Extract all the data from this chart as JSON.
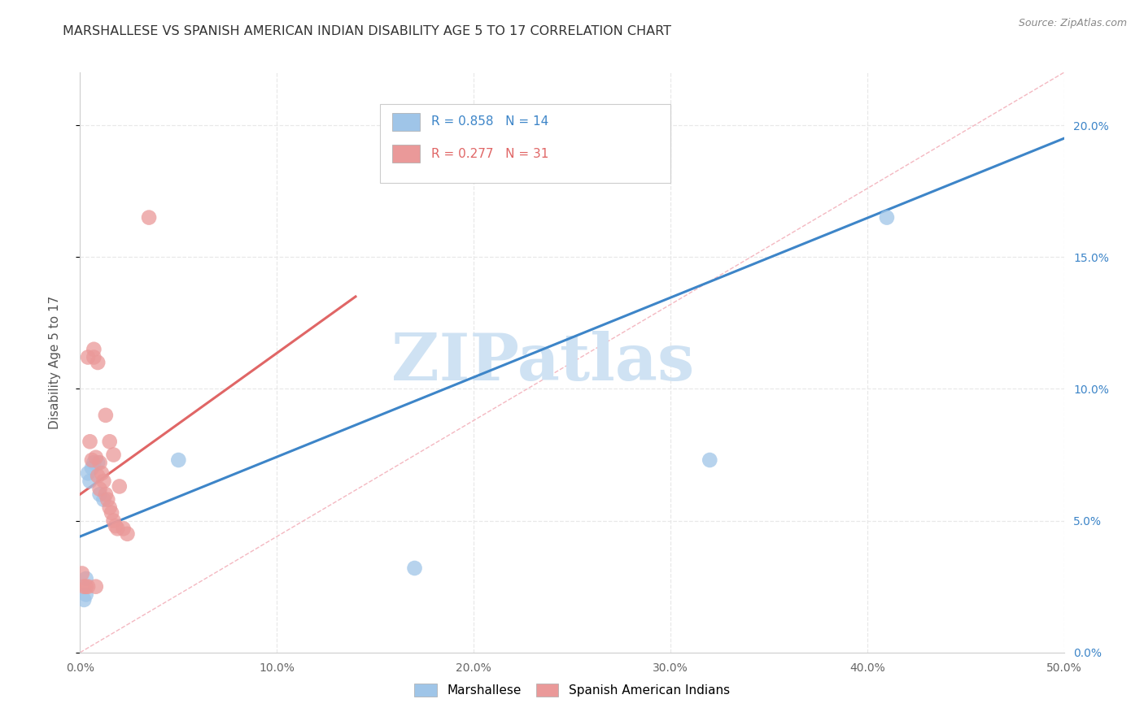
{
  "title": "MARSHALLESE VS SPANISH AMERICAN INDIAN DISABILITY AGE 5 TO 17 CORRELATION CHART",
  "source": "Source: ZipAtlas.com",
  "ylabel": "Disability Age 5 to 17",
  "xlim": [
    0.0,
    0.5
  ],
  "ylim": [
    0.0,
    0.22
  ],
  "legend_R_blue": "R = 0.858",
  "legend_N_blue": "N = 14",
  "legend_R_pink": "R = 0.277",
  "legend_N_pink": "N = 31",
  "label_blue": "Marshallese",
  "label_pink": "Spanish American Indians",
  "blue_scatter_color": "#9fc5e8",
  "pink_scatter_color": "#ea9999",
  "blue_line_color": "#3d85c8",
  "pink_line_color": "#e06666",
  "diag_line_color": "#f4b8c1",
  "watermark_text": "ZIPatlas",
  "watermark_color": "#cfe2f3",
  "right_tick_color": "#3d85c8",
  "blue_line_x0": 0.0,
  "blue_line_x1": 0.5,
  "blue_line_y0": 0.044,
  "blue_line_y1": 0.195,
  "pink_line_x0": 0.0,
  "pink_line_x1": 0.14,
  "pink_line_y0": 0.06,
  "pink_line_y1": 0.135,
  "diag_line_x0": 0.0,
  "diag_line_x1": 0.5,
  "diag_line_y0": 0.0,
  "diag_line_y1": 0.22,
  "blue_x": [
    0.002,
    0.003,
    0.004,
    0.005,
    0.006,
    0.007,
    0.009,
    0.01,
    0.012,
    0.05,
    0.17,
    0.32,
    0.41,
    0.003
  ],
  "blue_y": [
    0.02,
    0.022,
    0.068,
    0.065,
    0.07,
    0.072,
    0.072,
    0.06,
    0.058,
    0.073,
    0.032,
    0.073,
    0.165,
    0.028
  ],
  "pink_x": [
    0.001,
    0.002,
    0.003,
    0.004,
    0.005,
    0.006,
    0.007,
    0.007,
    0.008,
    0.009,
    0.009,
    0.01,
    0.01,
    0.011,
    0.012,
    0.013,
    0.013,
    0.014,
    0.015,
    0.015,
    0.016,
    0.017,
    0.017,
    0.018,
    0.019,
    0.02,
    0.022,
    0.024,
    0.035,
    0.004,
    0.008
  ],
  "pink_y": [
    0.03,
    0.025,
    0.025,
    0.112,
    0.08,
    0.073,
    0.112,
    0.115,
    0.074,
    0.067,
    0.11,
    0.062,
    0.072,
    0.068,
    0.065,
    0.06,
    0.09,
    0.058,
    0.055,
    0.08,
    0.053,
    0.05,
    0.075,
    0.048,
    0.047,
    0.063,
    0.047,
    0.045,
    0.165,
    0.025,
    0.025
  ],
  "background_color": "#ffffff",
  "grid_color": "#e8e8e8"
}
